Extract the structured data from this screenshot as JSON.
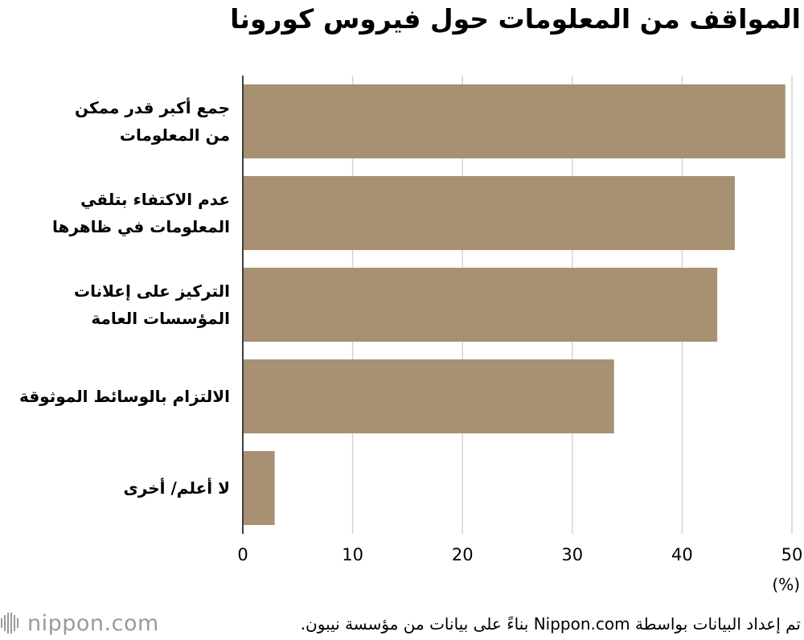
{
  "title": "المواقف من المعلومات حول فيروس كورونا",
  "unit_label": "(%)",
  "footer": {
    "logo": "nippon.com",
    "source": "تم إعداد البيانات بواسطة Nippon.com بناءً على بيانات من مؤسسة نيبون."
  },
  "colors": {
    "bar": "#a89073",
    "grid": "#d4d4d4",
    "axis": "#000000"
  },
  "chart_data": {
    "type": "bar",
    "orientation": "horizontal",
    "categories": [
      [
        "جمع أكبر قدر ممكن",
        "من المعلومات"
      ],
      [
        "عدم الاكتفاء بتلقي",
        "المعلومات في ظاهرها"
      ],
      [
        "التركيز على إعلانات",
        "المؤسسات العامة"
      ],
      [
        "الالتزام بالوسائط الموثوقة"
      ],
      [
        "لا أعلم/ أخرى"
      ]
    ],
    "values": [
      49.4,
      44.8,
      43.2,
      33.8,
      2.9
    ],
    "xlim": [
      0,
      50
    ],
    "xticks": [
      0,
      10,
      20,
      30,
      40,
      50
    ],
    "grid": true,
    "xlabel": "(%)"
  }
}
